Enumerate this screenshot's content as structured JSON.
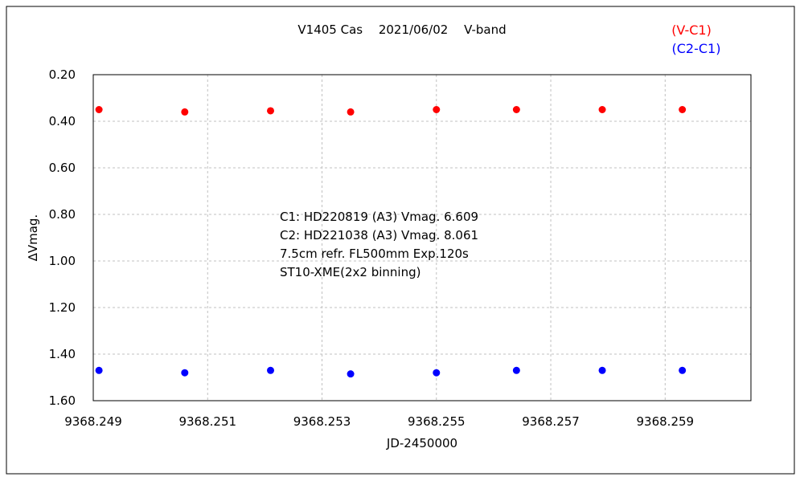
{
  "chart_data": {
    "type": "scatter",
    "title": "V1405 Cas　 2021/06/02　 V-band",
    "xlabel": "JD-2450000",
    "ylabel": "∆Vmag.",
    "xlim": [
      9368.249,
      9368.2605
    ],
    "ylim": [
      0.2,
      1.6
    ],
    "y_inverted": true,
    "grid": true,
    "grid_style": "dashed",
    "legend_position": "top-right",
    "x_tick_labels": [
      "9368.249",
      "9368.251",
      "9368.253",
      "9368.255",
      "9368.257",
      "9368.259"
    ],
    "y_tick_labels": [
      "0.20",
      "0.40",
      "0.60",
      "0.80",
      "1.00",
      "1.20",
      "1.40",
      "1.60"
    ],
    "annotations": [
      "C1: HD220819 (A3) Vmag. 6.609",
      "C2: HD221038 (A3) Vmag. 8.061",
      "7.5cm refr. FL500mm  Exp.120s",
      "ST10-XME(2x2 binning)"
    ],
    "series": [
      {
        "name": "(V-C1)",
        "color": "#ff0000",
        "x": [
          9368.2491,
          9368.2506,
          9368.2521,
          9368.2535,
          9368.255,
          9368.2564,
          9368.2579,
          9368.2593
        ],
        "y": [
          0.35,
          0.36,
          0.355,
          0.36,
          0.35,
          0.35,
          0.35,
          0.35
        ]
      },
      {
        "name": "(C2-C1)",
        "color": "#0000ff",
        "x": [
          9368.2491,
          9368.2506,
          9368.2521,
          9368.2535,
          9368.255,
          9368.2564,
          9368.2579,
          9368.2593
        ],
        "y": [
          1.47,
          1.48,
          1.47,
          1.485,
          1.48,
          1.47,
          1.47,
          1.47
        ]
      }
    ]
  }
}
